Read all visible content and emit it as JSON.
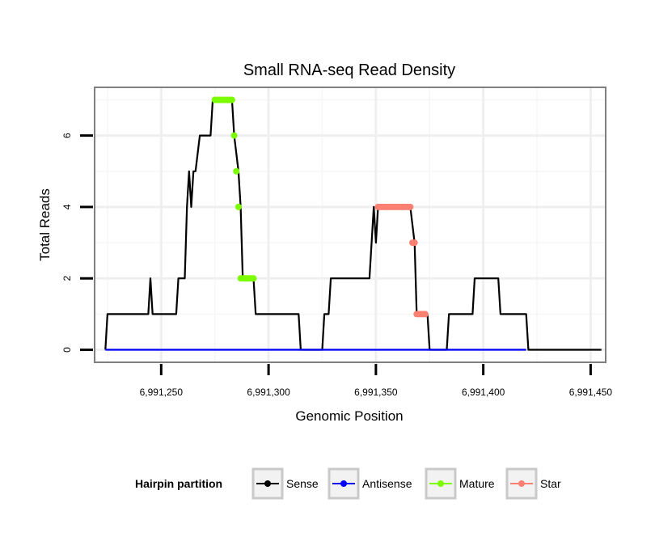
{
  "chart_data": {
    "type": "line",
    "title": "Small RNA-seq Read Density",
    "xlabel": "Genomic Position",
    "ylabel": "Total Reads",
    "xlim": [
      6991219,
      6991457
    ],
    "ylim": [
      -0.35,
      7.35
    ],
    "x_ticks": [
      6991250,
      6991300,
      6991350,
      6991400,
      6991450
    ],
    "x_tick_labels": [
      "6,991,250",
      "6,991,300",
      "6,991,350",
      "6,991,400",
      "6,991,450"
    ],
    "y_ticks": [
      0,
      2,
      4,
      6
    ],
    "y_tick_labels": [
      "0",
      "2",
      "4",
      "6"
    ],
    "grid": true,
    "legend": {
      "title": "Hairpin partition",
      "position": "bottom",
      "entries": [
        {
          "label": "Sense",
          "color": "#000000"
        },
        {
          "label": "Antisense",
          "color": "#0000ff"
        },
        {
          "label": "Mature",
          "color": "#7cfc00"
        },
        {
          "label": "Star",
          "color": "#fa8072"
        }
      ]
    },
    "series": [
      {
        "name": "Sense",
        "color": "#000000",
        "x": [
          6991224,
          6991225,
          6991244,
          6991245,
          6991246,
          6991257,
          6991258,
          6991261,
          6991262,
          6991263,
          6991264,
          6991265,
          6991266,
          6991268,
          6991269,
          6991273,
          6991274,
          6991283,
          6991284,
          6991286,
          6991287,
          6991288,
          6991293,
          6991294,
          6991314,
          6991315,
          6991325,
          6991326,
          6991328,
          6991329,
          6991347,
          6991349,
          6991350,
          6991351,
          6991366,
          6991368,
          6991369,
          6991374,
          6991375,
          6991383,
          6991384,
          6991395,
          6991396,
          6991407,
          6991408,
          6991420,
          6991421,
          6991455
        ],
        "values": [
          0,
          1,
          1,
          2,
          1,
          1,
          2,
          2,
          4,
          5,
          4,
          5,
          5,
          6,
          6,
          6,
          7,
          7,
          6,
          5,
          4,
          2,
          2,
          1,
          1,
          0,
          0,
          1,
          1,
          2,
          2,
          4,
          3,
          4,
          4,
          3,
          1,
          1,
          0,
          0,
          1,
          1,
          2,
          2,
          1,
          1,
          0,
          0
        ]
      },
      {
        "name": "Antisense",
        "color": "#0000ff",
        "x": [
          6991224,
          6991420
        ],
        "values": [
          0,
          0
        ]
      },
      {
        "name": "Mature",
        "color": "#7cfc00",
        "x": [
          6991275,
          6991276,
          6991277,
          6991278,
          6991279,
          6991280,
          6991281,
          6991282,
          6991283,
          6991284,
          6991285,
          6991286,
          6991287,
          6991288,
          6991289,
          6991290,
          6991291,
          6991292,
          6991293
        ],
        "values": [
          7,
          7,
          7,
          7,
          7,
          7,
          7,
          7,
          7,
          6,
          5,
          4,
          2,
          2,
          2,
          2,
          2,
          2,
          2
        ]
      },
      {
        "name": "Star",
        "color": "#fa8072",
        "x": [
          6991351,
          6991352,
          6991353,
          6991354,
          6991355,
          6991356,
          6991357,
          6991358,
          6991359,
          6991360,
          6991361,
          6991362,
          6991363,
          6991364,
          6991365,
          6991366,
          6991367,
          6991368,
          6991369,
          6991370,
          6991371,
          6991372,
          6991373
        ],
        "values": [
          4,
          4,
          4,
          4,
          4,
          4,
          4,
          4,
          4,
          4,
          4,
          4,
          4,
          4,
          4,
          4,
          3,
          3,
          1,
          1,
          1,
          1,
          1
        ]
      }
    ]
  }
}
